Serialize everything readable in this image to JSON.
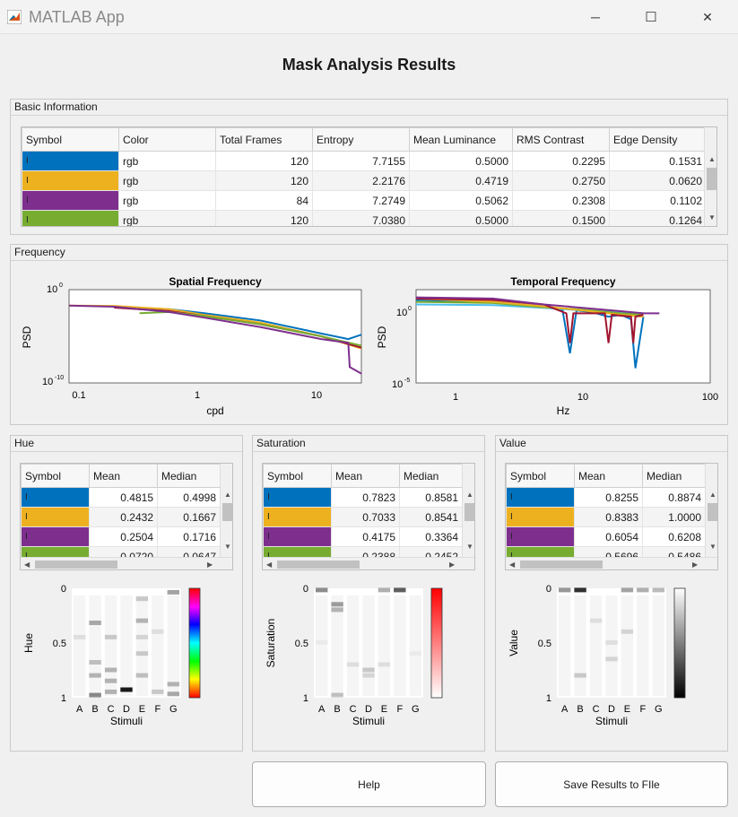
{
  "window": {
    "title": "MATLAB App",
    "minimize": "─",
    "maximize": "☐",
    "close": "✕"
  },
  "main_title": "Mask Analysis Results",
  "colors": {
    "blue": "#0072bd",
    "orange": "#edb120",
    "purple": "#7e2f8e",
    "green": "#77ac30",
    "red": "#a2142f",
    "cyan": "#4dbeee"
  },
  "basic": {
    "title": "Basic Information",
    "headers": [
      "Symbol",
      "Color",
      "Total Frames",
      "Entropy",
      "Mean Luminance",
      "RMS Contrast",
      "Edge Density"
    ],
    "rows": [
      {
        "symbol": "I",
        "color": "rgb",
        "frames": "120",
        "entropy": "7.7155",
        "lum": "0.5000",
        "rms": "0.2295",
        "edge": "0.1531",
        "swatch": "#0072bd"
      },
      {
        "symbol": "I",
        "color": "rgb",
        "frames": "120",
        "entropy": "2.2176",
        "lum": "0.4719",
        "rms": "0.2750",
        "edge": "0.0620",
        "swatch": "#edb120"
      },
      {
        "symbol": "I",
        "color": "rgb",
        "frames": "84",
        "entropy": "7.2749",
        "lum": "0.5062",
        "rms": "0.2308",
        "edge": "0.1102",
        "swatch": "#7e2f8e"
      },
      {
        "symbol": "I",
        "color": "rgb",
        "frames": "120",
        "entropy": "7.0380",
        "lum": "0.5000",
        "rms": "0.1500",
        "edge": "0.1264",
        "swatch": "#77ac30"
      }
    ]
  },
  "frequency": {
    "title": "Frequency",
    "spatial": {
      "title": "Spatial Frequency",
      "xlabel": "cpd",
      "ylabel": "PSD",
      "xticks": [
        "0.1",
        "1",
        "10"
      ],
      "yticks": [
        "10",
        "10"
      ],
      "yexp": [
        "0",
        "-10"
      ]
    },
    "temporal": {
      "title": "Temporal Frequency",
      "xlabel": "Hz",
      "ylabel": "PSD",
      "xticks": [
        "1",
        "10",
        "100"
      ],
      "yticks": [
        "10",
        "10"
      ],
      "yexp": [
        "0",
        "-5"
      ]
    }
  },
  "hue": {
    "title": "Hue",
    "headers": [
      "Symbol",
      "Mean",
      "Median"
    ],
    "rows": [
      {
        "symbol": "I",
        "mean": "0.4815",
        "median": "0.4998",
        "swatch": "#0072bd"
      },
      {
        "symbol": "I",
        "mean": "0.2432",
        "median": "0.1667",
        "swatch": "#edb120"
      },
      {
        "symbol": "I",
        "mean": "0.2504",
        "median": "0.1716",
        "swatch": "#7e2f8e"
      },
      {
        "symbol": "I",
        "mean": "0.0720",
        "median": "0.0647",
        "swatch": "#77ac30"
      }
    ],
    "ylabel": "Hue",
    "xlabel": "Stimuli"
  },
  "saturation": {
    "title": "Saturation",
    "headers": [
      "Symbol",
      "Mean",
      "Median"
    ],
    "rows": [
      {
        "symbol": "I",
        "mean": "0.7823",
        "median": "0.8581",
        "swatch": "#0072bd"
      },
      {
        "symbol": "I",
        "mean": "0.7033",
        "median": "0.8541",
        "swatch": "#edb120"
      },
      {
        "symbol": "I",
        "mean": "0.4175",
        "median": "0.3364",
        "swatch": "#7e2f8e"
      },
      {
        "symbol": "I",
        "mean": "0.2388",
        "median": "0.2452",
        "swatch": "#77ac30"
      }
    ],
    "ylabel": "Saturation",
    "xlabel": "Stimuli"
  },
  "value": {
    "title": "Value",
    "headers": [
      "Symbol",
      "Mean",
      "Median"
    ],
    "rows": [
      {
        "symbol": "I",
        "mean": "0.8255",
        "median": "0.8874",
        "swatch": "#0072bd"
      },
      {
        "symbol": "I",
        "mean": "0.8383",
        "median": "1.0000",
        "swatch": "#edb120"
      },
      {
        "symbol": "I",
        "mean": "0.6054",
        "median": "0.6208",
        "swatch": "#7e2f8e"
      },
      {
        "symbol": "I",
        "mean": "0.5696",
        "median": "0.5486",
        "swatch": "#77ac30"
      }
    ],
    "ylabel": "Value",
    "xlabel": "Stimuli"
  },
  "stimuli": [
    "A",
    "B",
    "C",
    "D",
    "E",
    "F",
    "G"
  ],
  "yticks01": [
    "0",
    "0.5",
    "1"
  ],
  "buttons": {
    "help": "Help",
    "save": "Save Results to FIle"
  },
  "chart_data": [
    {
      "type": "line",
      "title": "Spatial Frequency",
      "xlabel": "cpd",
      "ylabel": "PSD",
      "xscale": "log",
      "yscale": "log",
      "xlim": [
        0.07,
        22
      ],
      "ylim": [
        1e-10,
        1
      ],
      "series": [
        {
          "color": "#0072bd",
          "x": [
            0.17,
            0.5,
            1,
            3,
            10,
            17,
            22
          ],
          "y": [
            0.015,
            0.008,
            0.003,
            0.0005,
            2e-05,
            5e-06,
            1.5e-05
          ]
        },
        {
          "color": "#edb120",
          "x": [
            0.07,
            0.17,
            0.5,
            1,
            3,
            10,
            22
          ],
          "y": [
            0.02,
            0.018,
            0.008,
            0.002,
            0.0003,
            1e-05,
            5e-07
          ]
        },
        {
          "color": "#a2142f",
          "x": [
            0.17,
            0.5,
            1,
            3,
            10,
            22
          ],
          "y": [
            0.012,
            0.005,
            0.0015,
            0.0002,
            1e-05,
            6e-07
          ]
        },
        {
          "color": "#77ac30",
          "x": [
            0.28,
            0.5,
            1,
            3,
            10,
            22
          ],
          "y": [
            0.003,
            0.004,
            0.0015,
            0.0002,
            1e-05,
            1e-06
          ]
        },
        {
          "color": "#7e2f8e",
          "x": [
            0.07,
            0.17,
            0.5,
            1,
            3,
            10,
            17,
            17.5,
            22
          ],
          "y": [
            0.02,
            0.015,
            0.004,
            0.001,
            0.0001,
            5e-06,
            2e-06,
            5e-09,
            1e-09
          ]
        }
      ]
    },
    {
      "type": "line",
      "title": "Temporal Frequency",
      "xlabel": "Hz",
      "ylabel": "PSD",
      "xscale": "log",
      "yscale": "log",
      "xlim": [
        0.5,
        100
      ],
      "ylim": [
        1e-05,
        20
      ],
      "series": [
        {
          "color": "#0072bd",
          "x": [
            0.5,
            2,
            5,
            7,
            8,
            9,
            12,
            16,
            20,
            24,
            26,
            30
          ],
          "y": [
            4,
            3,
            1.5,
            0.8,
            0.001,
            0.8,
            0.6,
            0.3,
            0.4,
            0.2,
            0.0001,
            0.3
          ]
        },
        {
          "color": "#4dbeee",
          "x": [
            0.5,
            2,
            5,
            10,
            20,
            30
          ],
          "y": [
            2,
            1.8,
            1.2,
            0.8,
            0.6,
            0.5
          ]
        },
        {
          "color": "#77ac30",
          "x": [
            0.5,
            2,
            5,
            10,
            20,
            30
          ],
          "y": [
            3,
            2.5,
            1.3,
            0.9,
            0.5,
            0.4
          ]
        },
        {
          "color": "#edb120",
          "x": [
            0.5,
            2,
            5,
            10,
            20,
            30
          ],
          "y": [
            5,
            3,
            1.5,
            0.8,
            0.4,
            0.3
          ]
        },
        {
          "color": "#a2142f",
          "x": [
            0.5,
            2,
            5,
            7.5,
            8,
            8.5,
            15,
            16,
            17,
            24,
            25,
            26,
            30
          ],
          "y": [
            5,
            4,
            2,
            0.5,
            0.005,
            0.5,
            0.5,
            0.005,
            0.4,
            0.3,
            0.005,
            0.3,
            0.4
          ]
        },
        {
          "color": "#7e2f8e",
          "x": [
            0.5,
            2,
            5,
            10,
            20,
            30,
            40
          ],
          "y": [
            6,
            5,
            2,
            1.2,
            0.7,
            0.5,
            0.5
          ]
        }
      ]
    },
    {
      "type": "heatmap",
      "title": "",
      "xlabel": "Stimuli",
      "ylabel": "Hue",
      "ylim": [
        0,
        1
      ],
      "categories": [
        "A",
        "B",
        "C",
        "D",
        "E",
        "F",
        "G"
      ],
      "marks": [
        [
          0,
          0.55,
          0.1
        ],
        [
          1,
          0.68,
          0.35
        ],
        [
          1,
          0.32,
          0.25
        ],
        [
          1,
          0.2,
          0.3
        ],
        [
          1,
          0.02,
          0.5
        ],
        [
          2,
          0.55,
          0.2
        ],
        [
          2,
          0.25,
          0.3
        ],
        [
          2,
          0.15,
          0.3
        ],
        [
          2,
          0.05,
          0.3
        ],
        [
          3,
          0.07,
          1.0
        ],
        [
          4,
          0.9,
          0.2
        ],
        [
          4,
          0.7,
          0.3
        ],
        [
          4,
          0.55,
          0.15
        ],
        [
          4,
          0.4,
          0.2
        ],
        [
          4,
          0.2,
          0.25
        ],
        [
          5,
          0.6,
          0.1
        ],
        [
          5,
          0.05,
          0.2
        ],
        [
          6,
          0.96,
          0.4
        ],
        [
          6,
          0.12,
          0.3
        ],
        [
          6,
          0.03,
          0.35
        ]
      ]
    },
    {
      "type": "heatmap",
      "title": "",
      "xlabel": "Stimuli",
      "ylabel": "Saturation",
      "ylim": [
        0,
        1
      ],
      "categories": [
        "A",
        "B",
        "C",
        "D",
        "E",
        "F",
        "G"
      ],
      "marks": [
        [
          0,
          0.98,
          0.5
        ],
        [
          0,
          0.5,
          0.05
        ],
        [
          1,
          0.85,
          0.4
        ],
        [
          1,
          0.8,
          0.3
        ],
        [
          1,
          0.02,
          0.25
        ],
        [
          2,
          0.3,
          0.1
        ],
        [
          3,
          0.25,
          0.2
        ],
        [
          3,
          0.2,
          0.15
        ],
        [
          4,
          0.98,
          0.35
        ],
        [
          4,
          0.3,
          0.1
        ],
        [
          5,
          0.98,
          0.7
        ],
        [
          6,
          0.4,
          0.05
        ]
      ]
    },
    {
      "type": "heatmap",
      "title": "",
      "xlabel": "Stimuli",
      "ylabel": "Value",
      "ylim": [
        0,
        1
      ],
      "categories": [
        "A",
        "B",
        "C",
        "D",
        "E",
        "F",
        "G"
      ],
      "marks": [
        [
          0,
          0.98,
          0.45
        ],
        [
          1,
          0.98,
          0.9
        ],
        [
          1,
          0.2,
          0.2
        ],
        [
          2,
          0.7,
          0.1
        ],
        [
          3,
          0.5,
          0.1
        ],
        [
          3,
          0.35,
          0.15
        ],
        [
          4,
          0.98,
          0.4
        ],
        [
          4,
          0.6,
          0.15
        ],
        [
          5,
          0.98,
          0.35
        ],
        [
          6,
          0.98,
          0.3
        ]
      ]
    }
  ]
}
